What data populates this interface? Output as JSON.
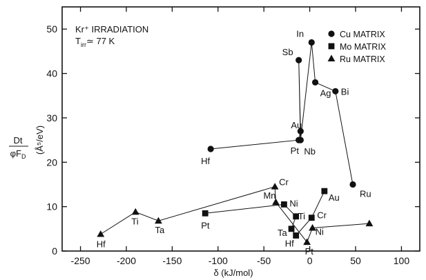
{
  "chart_data": {
    "type": "scatter",
    "xlabel": "δ (kJ/mol)",
    "ylabel_main": "Dt",
    "ylabel_denominator": "φF",
    "ylabel_denominator_sub": "D",
    "ylabel_units": "(Å⁵/eV)",
    "xlim": [
      -270,
      120
    ],
    "ylim": [
      0,
      55
    ],
    "xticks": [
      -250,
      -200,
      -150,
      -100,
      -50,
      0,
      50,
      100
    ],
    "yticks": [
      0,
      10,
      20,
      30,
      40,
      50
    ],
    "annotations": [
      "Kr⁺ IRRADIATION",
      "T",
      "irr",
      "≃ 77 K"
    ],
    "legend": [
      {
        "marker": "circle",
        "label": "Cu MATRIX"
      },
      {
        "marker": "square",
        "label": "Mo MATRIX"
      },
      {
        "marker": "triangle",
        "label": "Ru MATRIX"
      }
    ],
    "series": [
      {
        "name": "Cu MATRIX",
        "marker": "circle",
        "connected": true,
        "points": [
          {
            "label": "Hf",
            "x": -108,
            "y": 23
          },
          {
            "label": "Pt",
            "x": -12,
            "y": 25
          },
          {
            "label": "Au",
            "x": -10,
            "y": 27
          },
          {
            "label": "Sb",
            "x": -12,
            "y": 43
          },
          {
            "label": "Nb",
            "x": -10,
            "y": 25
          },
          {
            "label": "In",
            "x": 2,
            "y": 47
          },
          {
            "label": "Ag",
            "x": 6,
            "y": 38
          },
          {
            "label": "Bi",
            "x": 28,
            "y": 36
          },
          {
            "label": "Ru",
            "x": 47,
            "y": 15
          }
        ]
      },
      {
        "name": "Mo MATRIX",
        "marker": "square",
        "connected": true,
        "points": [
          {
            "label": "Pt",
            "x": -114,
            "y": 8.5
          },
          {
            "label": "Ni",
            "x": -28,
            "y": 10.5
          },
          {
            "label": "Ti",
            "x": -15,
            "y": 7.8
          },
          {
            "label": "Ta",
            "x": -20,
            "y": 5
          },
          {
            "label": "Hf",
            "x": -15,
            "y": 3.5
          },
          {
            "label": "Cr",
            "x": 2,
            "y": 7.5
          },
          {
            "label": "Au",
            "x": 16,
            "y": 13.5
          }
        ]
      },
      {
        "name": "Ru MATRIX",
        "marker": "triangle",
        "connected": true,
        "points": [
          {
            "label": "Hf",
            "x": -228,
            "y": 3.8
          },
          {
            "label": "Ti",
            "x": -190,
            "y": 8.8
          },
          {
            "label": "Ta",
            "x": -165,
            "y": 6.8
          },
          {
            "label": "Cr",
            "x": -38,
            "y": 14.5
          },
          {
            "label": "Mn",
            "x": -37,
            "y": 11
          },
          {
            "label": "Pt",
            "x": -3,
            "y": 2
          },
          {
            "label": "Ni",
            "x": 3,
            "y": 5.2
          },
          {
            "label": "",
            "x": 65,
            "y": 6.2
          }
        ]
      }
    ]
  }
}
